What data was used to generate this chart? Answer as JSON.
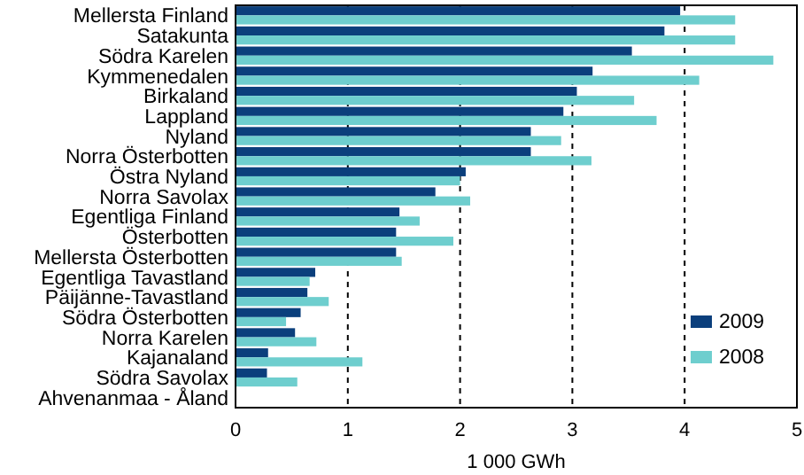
{
  "chart_data": {
    "type": "bar",
    "orientation": "horizontal",
    "xlabel": "1 000 GWh",
    "categories": [
      "Mellersta Finland",
      "Satakunta",
      "Södra Karelen",
      "Kymmenedalen",
      "Birkaland",
      "Lappland",
      "Nyland",
      "Norra Österbotten",
      "Östra Nyland",
      "Norra Savolax",
      "Egentliga Finland",
      "Österbotten",
      "Mellersta Österbotten",
      "Egentliga Tavastland",
      "Päijänne-Tavastland",
      "Södra Österbotten",
      "Norra Karelen",
      "Kajanaland",
      "Södra Savolax",
      "Ahvenanmaa - Åland"
    ],
    "series": [
      {
        "name": "2009",
        "color": "#0b3f7c",
        "values": [
          3.96,
          3.82,
          3.53,
          3.18,
          3.04,
          2.92,
          2.63,
          2.63,
          2.05,
          1.78,
          1.46,
          1.43,
          1.43,
          0.71,
          0.64,
          0.58,
          0.53,
          0.29,
          0.28,
          0
        ]
      },
      {
        "name": "2008",
        "color": "#6ecece",
        "values": [
          4.45,
          4.45,
          4.79,
          4.13,
          3.55,
          3.75,
          2.9,
          3.17,
          2.0,
          2.09,
          1.64,
          1.94,
          1.48,
          0.66,
          0.83,
          0.45,
          0.72,
          1.13,
          0.55,
          0
        ]
      }
    ],
    "xlim": [
      0,
      5
    ],
    "xticks": [
      0,
      1,
      2,
      3,
      4,
      5
    ],
    "grid": "x",
    "legend": "bottom right"
  }
}
